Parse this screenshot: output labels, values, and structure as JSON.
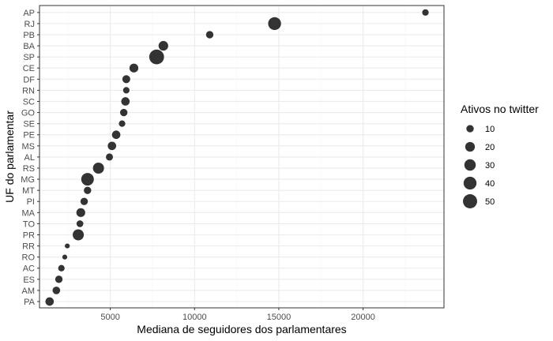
{
  "chart_data": {
    "type": "scatter",
    "xlabel": "Mediana de seguidores dos parlamentares",
    "ylabel": "UF do parlamentar",
    "xlim": [
      800,
      24800
    ],
    "x_ticks": [
      5000,
      10000,
      15000,
      20000
    ],
    "grid": true,
    "legend_placement": "right",
    "categories": [
      "PA",
      "AM",
      "ES",
      "AC",
      "RO",
      "RR",
      "PR",
      "TO",
      "MA",
      "PI",
      "MT",
      "MG",
      "RS",
      "AL",
      "MS",
      "PE",
      "SE",
      "GO",
      "SC",
      "RN",
      "DF",
      "CE",
      "SP",
      "BA",
      "PB",
      "RJ",
      "AP"
    ],
    "points": [
      {
        "uf": "AP",
        "x": 23700,
        "size": 7
      },
      {
        "uf": "RJ",
        "x": 14750,
        "size": 40
      },
      {
        "uf": "PB",
        "x": 10900,
        "size": 10
      },
      {
        "uf": "BA",
        "x": 8150,
        "size": 20
      },
      {
        "uf": "SP",
        "x": 7750,
        "size": 55
      },
      {
        "uf": "CE",
        "x": 6400,
        "size": 16
      },
      {
        "uf": "DF",
        "x": 5950,
        "size": 12
      },
      {
        "uf": "RN",
        "x": 5950,
        "size": 7
      },
      {
        "uf": "SC",
        "x": 5900,
        "size": 14
      },
      {
        "uf": "GO",
        "x": 5800,
        "size": 10
      },
      {
        "uf": "SE",
        "x": 5700,
        "size": 7
      },
      {
        "uf": "PE",
        "x": 5350,
        "size": 14
      },
      {
        "uf": "MS",
        "x": 5100,
        "size": 14
      },
      {
        "uf": "AL",
        "x": 4950,
        "size": 9
      },
      {
        "uf": "RS",
        "x": 4300,
        "size": 28
      },
      {
        "uf": "MG",
        "x": 3650,
        "size": 38
      },
      {
        "uf": "MT",
        "x": 3650,
        "size": 10
      },
      {
        "uf": "PI",
        "x": 3450,
        "size": 10
      },
      {
        "uf": "MA",
        "x": 3250,
        "size": 16
      },
      {
        "uf": "TO",
        "x": 3200,
        "size": 8
      },
      {
        "uf": "PR",
        "x": 3100,
        "size": 28
      },
      {
        "uf": "RR",
        "x": 2450,
        "size": 3
      },
      {
        "uf": "RO",
        "x": 2300,
        "size": 3
      },
      {
        "uf": "AC",
        "x": 2100,
        "size": 7
      },
      {
        "uf": "ES",
        "x": 1950,
        "size": 10
      },
      {
        "uf": "AM",
        "x": 1800,
        "size": 11
      },
      {
        "uf": "PA",
        "x": 1400,
        "size": 14
      }
    ],
    "legend": {
      "title": "Ativos no twitter",
      "entries": [
        {
          "label": "10",
          "value": 10
        },
        {
          "label": "20",
          "value": 20
        },
        {
          "label": "30",
          "value": 30
        },
        {
          "label": "40",
          "value": 40
        },
        {
          "label": "50",
          "value": 50
        }
      ]
    },
    "colors": {
      "point": "#333333",
      "panel_border": "#333333",
      "grid_major": "#ebebeb",
      "grid_minor": "#f5f5f5",
      "tick_text": "#4d4d4d"
    }
  }
}
